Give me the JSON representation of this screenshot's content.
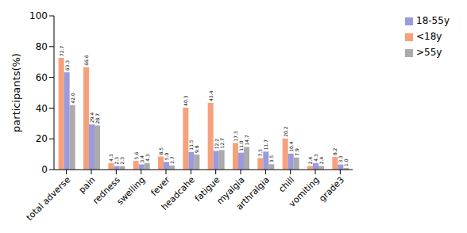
{
  "chart_data": {
    "type": "bar",
    "y_label": "participants(%)",
    "categories": [
      "total adverse",
      "pain",
      "redness",
      "swelling",
      "fever",
      "headcahe",
      "fatigue",
      "myalgia",
      "arthralgia",
      "chill",
      "vomiting",
      "grade3"
    ],
    "series": [
      {
        "name": "<18y",
        "color": "#f6a17c",
        "values": [
          72.7,
          66.6,
          4.3,
          5.6,
          8.5,
          40.3,
          43.4,
          17.3,
          7.5,
          20.2,
          2.4,
          8.2
        ],
        "value_labels": [
          "72.7",
          "66.6",
          "4.3",
          "5.6",
          "8.5",
          "40.3",
          "43.4",
          "17.3",
          "7.5",
          "20.2",
          "2.4",
          "8.2"
        ]
      },
      {
        "name": "18-55y",
        "color": "#9a9ade",
        "values": [
          63.3,
          29.4,
          2.3,
          3.4,
          5.0,
          11.5,
          12.2,
          11.0,
          11.7,
          10.4,
          4.3,
          3.3
        ],
        "value_labels": [
          "63.3",
          "29.4",
          "2.3",
          "3.4",
          "5.0",
          "11.5",
          "12.2",
          "11.0",
          "11.7",
          "10.4",
          "4.3",
          "3.3"
        ]
      },
      {
        "name": ">55y",
        "color": "#ababab",
        "values": [
          42.0,
          28.7,
          2.3,
          4.3,
          2.7,
          9.8,
          12.7,
          14.7,
          3.5,
          7.9,
          2.4,
          1.0
        ],
        "value_labels": [
          "42.0",
          "28.7",
          "2.3",
          "4.3",
          "2.7",
          "9.8",
          "12.7",
          "14.7",
          "3.5",
          "7.9",
          "2.4",
          "1.0"
        ]
      }
    ],
    "ylim": [
      0,
      100
    ],
    "yticks": [
      0,
      20,
      40,
      60,
      80,
      100
    ],
    "grid": false,
    "legend": "top-right",
    "data_labels": true
  }
}
